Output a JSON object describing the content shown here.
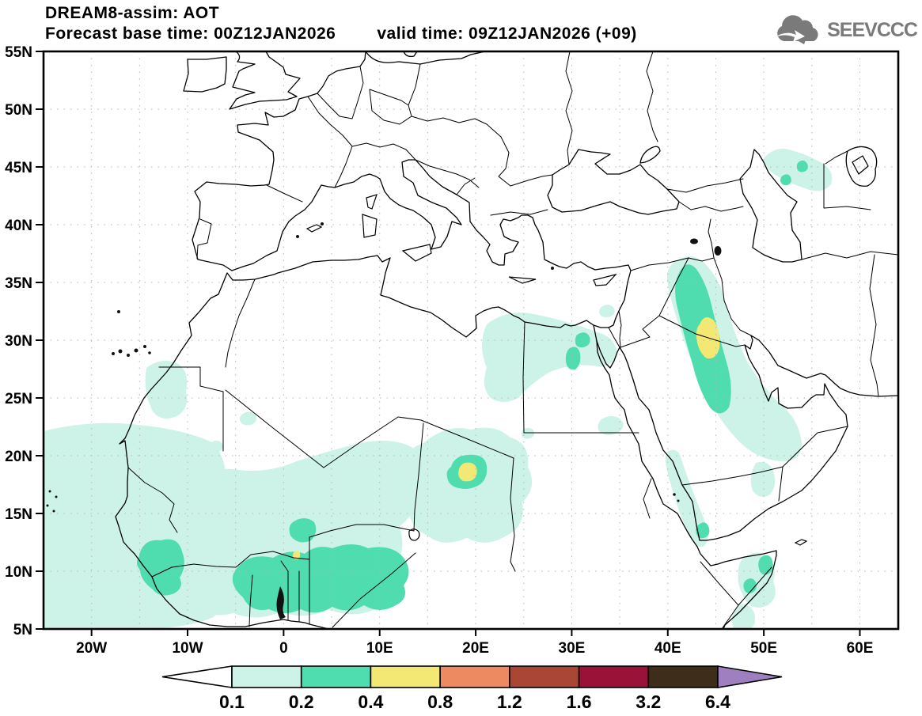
{
  "header": {
    "title": "DREAM8-assim: AOT",
    "base_time_label": "Forecast base time: 00Z12JAN2026",
    "valid_time_label": "valid time: 09Z12JAN2026 (+09)"
  },
  "logo": {
    "text": "SEEVCCC",
    "color": "#7a7a7a",
    "icon": "cloud-arrow-icon"
  },
  "map": {
    "variable": "AOT",
    "lat_ticks": [
      "55N",
      "50N",
      "45N",
      "40N",
      "35N",
      "30N",
      "25N",
      "20N",
      "15N",
      "10N",
      "5N"
    ],
    "lon_ticks": [
      "20W",
      "10W",
      "0",
      "10E",
      "20E",
      "30E",
      "40E",
      "50E",
      "60E"
    ],
    "lat_range_deg": [
      5,
      55
    ],
    "lon_range_deg": [
      -25,
      64
    ],
    "aot_features": [
      {
        "region": "West Africa / Sahel / Gulf of Guinea coast",
        "level": "0.1-0.4",
        "approx": "25W-10E, 5N-20N"
      },
      {
        "region": "Guinea",
        "level": "0.2-0.4",
        "approx": "14W-9W, 9N-12N"
      },
      {
        "region": "Burkina Faso / Benin / Nigeria band",
        "level": "0.2-0.4",
        "approx": "5W-12E, 8N-13N",
        "local_max": "0.4-0.8 speck near 2E,11N"
      },
      {
        "region": "Chad",
        "level": "0.2-0.4 with 0.4-0.8 core",
        "approx": "17E-20E, 17N-19N"
      },
      {
        "region": "Western Sahara coast",
        "level": "0.1-0.2",
        "approx": "12W-9W, 23N-28N"
      },
      {
        "region": "Northern Egypt / Nile",
        "level": "0.1-0.4",
        "approx": "20E-36E, 25N-31N"
      },
      {
        "region": "Iraq / Persian Gulf plume",
        "level": "0.1-0.4 with 0.4-0.8 core",
        "approx": "38E-55E, 18N-35N, core near 44E,30N"
      },
      {
        "region": "Southern Red Sea",
        "level": "0.1-0.4",
        "approx": "40E-44E, 10N-17N"
      },
      {
        "region": "Somalia coast",
        "level": "0.1-0.4",
        "approx": "47E-52E, 5N-11N"
      },
      {
        "region": "North Caspian lowland",
        "level": "0.1-0.4",
        "approx": "48E-57E, 43N-47N"
      }
    ]
  },
  "colorbar": {
    "labels": [
      "0.1",
      "0.2",
      "0.4",
      "0.8",
      "1.2",
      "1.6",
      "3.2",
      "6.4"
    ],
    "segment_colors": [
      "#ffffff",
      "#cdf2e8",
      "#4fdcae",
      "#f2e873",
      "#ee8a62",
      "#aa4636",
      "#9b1239",
      "#3f2d1b"
    ],
    "overflow_color": "#9e7fbf",
    "underflow_color": "#ffffff"
  }
}
